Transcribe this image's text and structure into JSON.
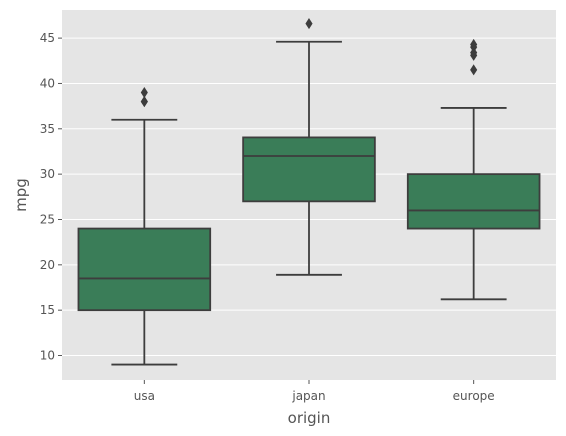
{
  "chart_data": {
    "type": "box",
    "title": "",
    "xlabel": "origin",
    "ylabel": "mpg",
    "ylim": [
      7.3,
      48.1
    ],
    "yticks": [
      10,
      15,
      20,
      25,
      30,
      35,
      40,
      45
    ],
    "ytick_labels": [
      "10",
      "15",
      "20",
      "25",
      "30",
      "35",
      "40",
      "45"
    ],
    "categories": [
      "usa",
      "japan",
      "europe"
    ],
    "boxes": [
      {
        "name": "usa",
        "whisker_low": 9.0,
        "q1": 15.0,
        "median": 18.5,
        "q3": 24.0,
        "whisker_high": 36.0,
        "outliers": [
          38.0,
          38.0,
          39.0
        ]
      },
      {
        "name": "japan",
        "whisker_low": 18.9,
        "q1": 27.0,
        "median": 32.0,
        "q3": 34.05,
        "whisker_high": 44.6,
        "outliers": [
          46.6
        ]
      },
      {
        "name": "europe",
        "whisker_low": 16.2,
        "q1": 24.0,
        "median": 26.0,
        "q3": 30.0,
        "whisker_high": 37.3,
        "outliers": [
          41.5,
          43.1,
          43.4,
          44.0,
          44.3
        ]
      }
    ],
    "box_color": "#3a7d58",
    "line_color": "#3d3d3d",
    "background_color": "#e5e5e5",
    "grid_color": "#ffffff",
    "grid": true
  }
}
